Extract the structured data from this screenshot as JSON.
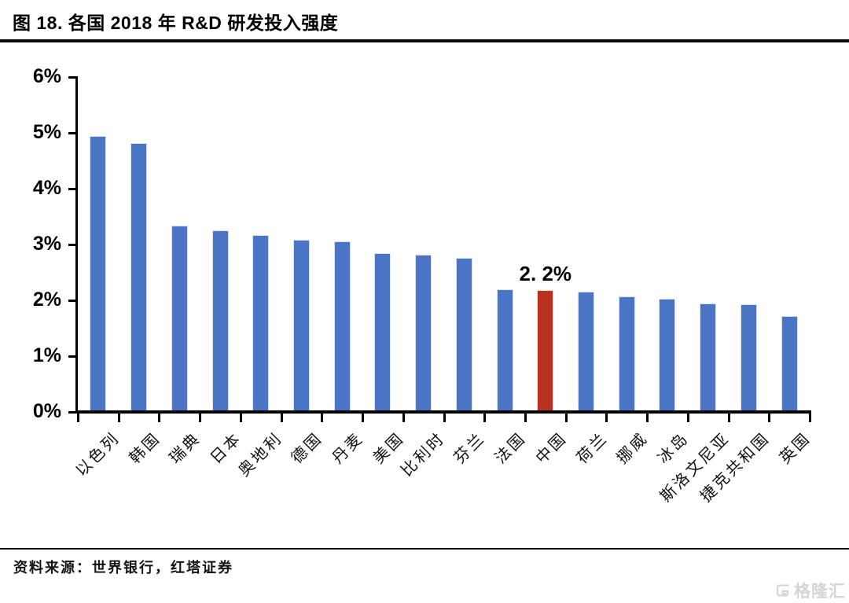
{
  "title": "图 18. 各国 2018 年 R&D 研发投入强度",
  "source": "资料来源：世界银行，红塔证券",
  "watermark": "格隆汇",
  "chart_data": {
    "type": "bar",
    "title": "图 18. 各国 2018 年 R&D 研发投入强度",
    "categories": [
      "以色列",
      "韩国",
      "瑞典",
      "日本",
      "奥地利",
      "德国",
      "丹麦",
      "美国",
      "比利时",
      "芬兰",
      "法国",
      "中国",
      "荷兰",
      "挪威",
      "冰岛",
      "斯洛文尼亚",
      "捷克共和国",
      "英国"
    ],
    "values": [
      4.95,
      4.81,
      3.34,
      3.26,
      3.17,
      3.09,
      3.06,
      2.84,
      2.82,
      2.76,
      2.2,
      2.19,
      2.16,
      2.07,
      2.03,
      1.95,
      1.93,
      1.72
    ],
    "unit": "%",
    "highlight_index": 11,
    "highlight_label": "2. 2%",
    "bar_color": "#4a74c4",
    "highlight_color": "#b93120",
    "axis_color": "#000000",
    "y_ticks": [
      "0%",
      "1%",
      "2%",
      "3%",
      "4%",
      "5%",
      "6%"
    ],
    "ylim": [
      0,
      6
    ],
    "grid": false,
    "legend": null
  }
}
